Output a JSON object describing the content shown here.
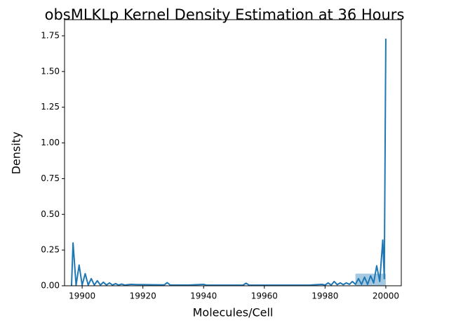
{
  "chart_data": {
    "type": "line",
    "title": "obsMLKLp Kernel Density Estimation at 36 Hours",
    "xlabel": "Molecules/Cell",
    "ylabel": "Density",
    "x": [
      19896.5,
      19897,
      19898,
      19899,
      19900,
      19901,
      19902,
      19903,
      19904,
      19905,
      19906,
      19907,
      19908,
      19909,
      19910,
      19911,
      19912,
      19913,
      19914,
      19916,
      19918,
      19920,
      19924,
      19927,
      19928,
      19929,
      19935,
      19940,
      19941,
      19950,
      19953,
      19954,
      19955,
      19965,
      19975,
      19979,
      19980,
      19981,
      19982,
      19983,
      19984,
      19985,
      19986,
      19987,
      19988,
      19989,
      19990,
      19991,
      19992,
      19993,
      19994,
      19995,
      19996,
      19997,
      19998,
      19999,
      19999.5,
      20000
    ],
    "values": [
      0,
      0.3,
      0.003,
      0.145,
      0.005,
      0.085,
      0.005,
      0.05,
      0.005,
      0.035,
      0.005,
      0.025,
      0.005,
      0.02,
      0.005,
      0.015,
      0.005,
      0.012,
      0.005,
      0.01,
      0.008,
      0.008,
      0.007,
      0.006,
      0.022,
      0.005,
      0.005,
      0.01,
      0.004,
      0.004,
      0.005,
      0.018,
      0.004,
      0.004,
      0.005,
      0.01,
      0.005,
      0.02,
      0.005,
      0.03,
      0.008,
      0.02,
      0.008,
      0.02,
      0.01,
      0.03,
      0.01,
      0.05,
      0.01,
      0.06,
      0.01,
      0.07,
      0.02,
      0.14,
      0.03,
      0.32,
      0.05,
      1.73
    ],
    "color": "#1f77b4",
    "histogram": {
      "bins": [
        19990,
        20000
      ],
      "counts": [
        0.085
      ],
      "color": "#1f77b4",
      "opacity": 0.4
    },
    "xlim": [
      19894.2,
      20005.1
    ],
    "ylim": [
      0,
      1.863
    ],
    "xticks": [
      19900,
      19920,
      19940,
      19960,
      19980,
      20000
    ],
    "yticks": [
      {
        "value": 0,
        "label": "0.00"
      },
      {
        "value": 0.25,
        "label": "0.25"
      },
      {
        "value": 0.5,
        "label": "0.50"
      },
      {
        "value": 0.75,
        "label": "0.75"
      },
      {
        "value": 1,
        "label": "1.00"
      },
      {
        "value": 1.25,
        "label": "1.25"
      },
      {
        "value": 1.5,
        "label": "1.50"
      },
      {
        "value": 1.75,
        "label": "1.75"
      }
    ],
    "grid": false
  }
}
